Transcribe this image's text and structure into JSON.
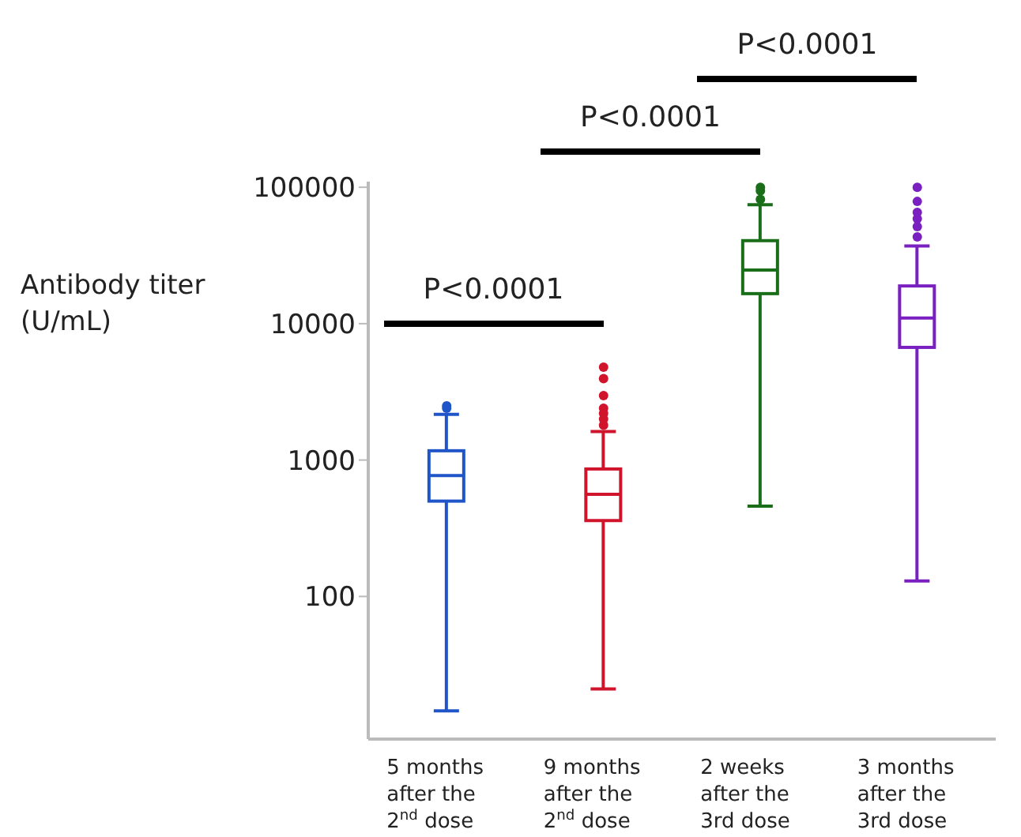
{
  "chart_data": {
    "type": "box",
    "ylabel": "Antibody titer\n(U/mL)",
    "categories": [
      "5 months\nafter the\n2$^{nd}$ dose",
      "9 months\nafter the\n2$^{nd}$ dose",
      "2 weeks\nafter the\n3rd dose",
      "3 months\nafter the\n3rd dose"
    ],
    "colors": [
      "#1f55c8",
      "#d0142c",
      "#1a6e1a",
      "#7a1fc0"
    ],
    "boxes": [
      {
        "low": 14.5,
        "q1": 500,
        "median": 770,
        "q3": 1170,
        "high": 2160,
        "outliers": [
          2400,
          2500
        ]
      },
      {
        "low": 21,
        "q1": 360,
        "median": 560,
        "q3": 860,
        "high": 1620,
        "outliers": [
          1800,
          2000,
          2200,
          2400,
          2970,
          3950,
          4800
        ]
      },
      {
        "low": 460,
        "q1": 16600,
        "median": 24700,
        "q3": 40600,
        "high": 74600,
        "outliers": [
          81600,
          94000,
          100000
        ]
      },
      {
        "low": 130,
        "q1": 6700,
        "median": 11000,
        "q3": 18900,
        "high": 37100,
        "outliers": [
          43200,
          51500,
          58800,
          65400,
          78700,
          100000
        ]
      }
    ],
    "log": true,
    "ylim": [
      9,
      110000
    ],
    "yticks": [
      100,
      1000,
      10000,
      100000
    ],
    "annotations": [
      "P<0.0001",
      "P<0.0001",
      "P<0.0001"
    ]
  }
}
